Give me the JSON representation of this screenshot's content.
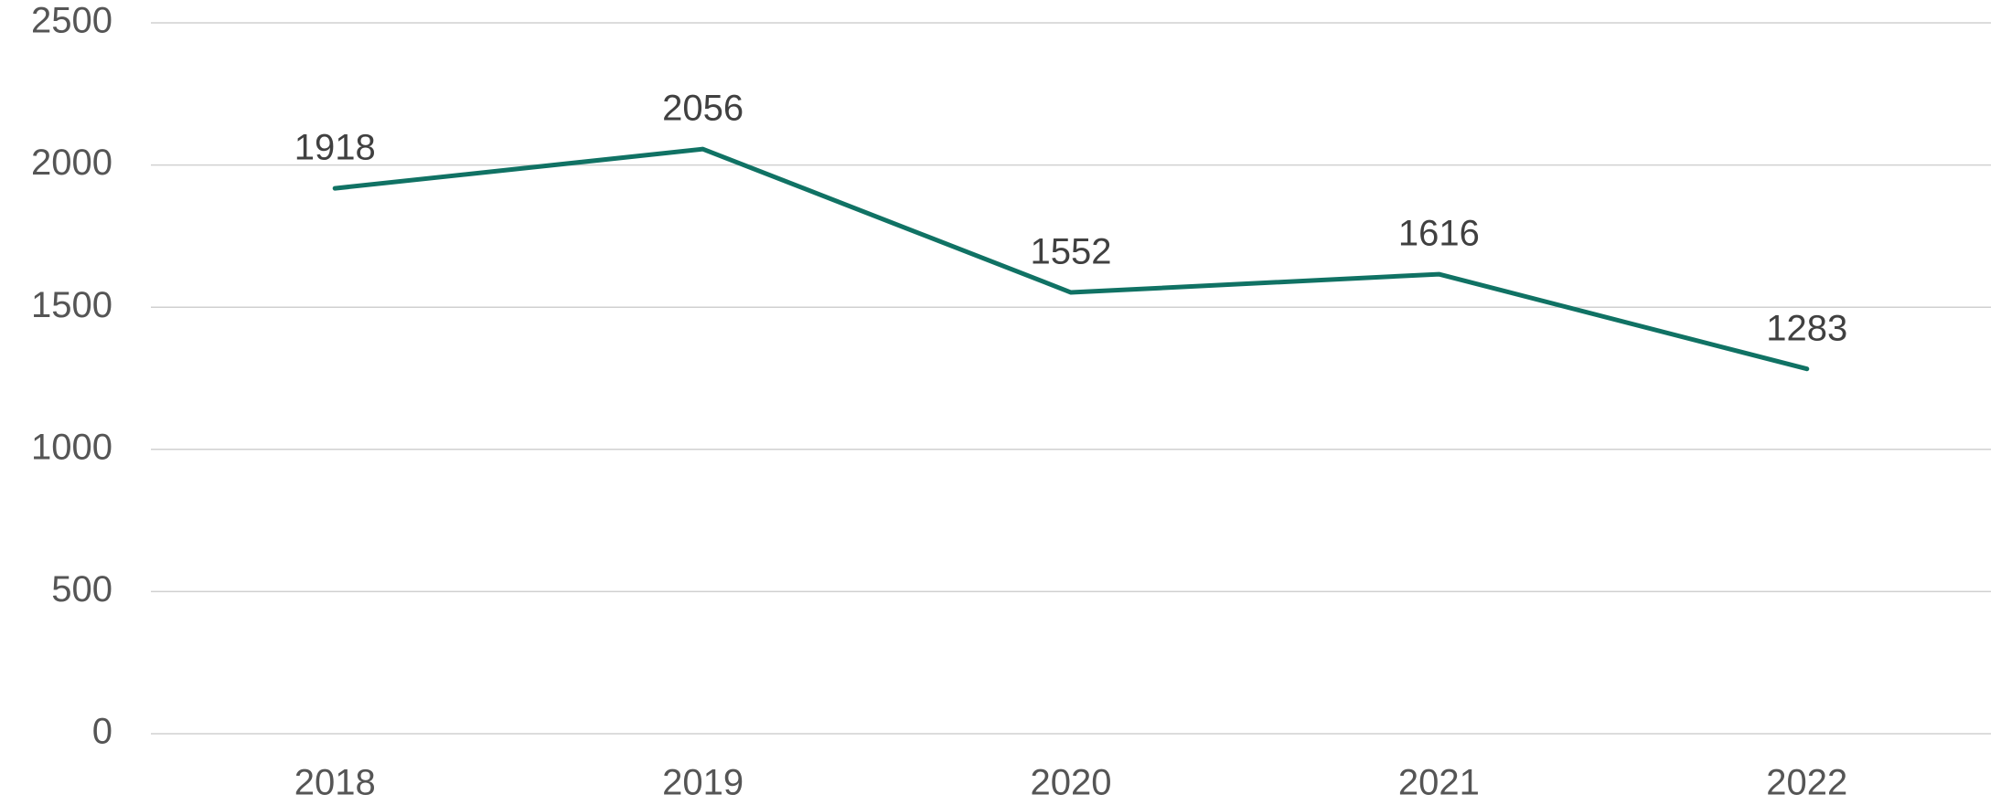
{
  "chart_data": {
    "type": "line",
    "categories": [
      "2018",
      "2019",
      "2020",
      "2021",
      "2022"
    ],
    "series": [
      {
        "color": "#107264",
        "values": [
          1918,
          2056,
          1552,
          1616,
          1283
        ]
      }
    ],
    "ylim": [
      0,
      2500
    ],
    "yticks": [
      0,
      500,
      1000,
      1500,
      2000,
      2500
    ],
    "grid": true
  }
}
